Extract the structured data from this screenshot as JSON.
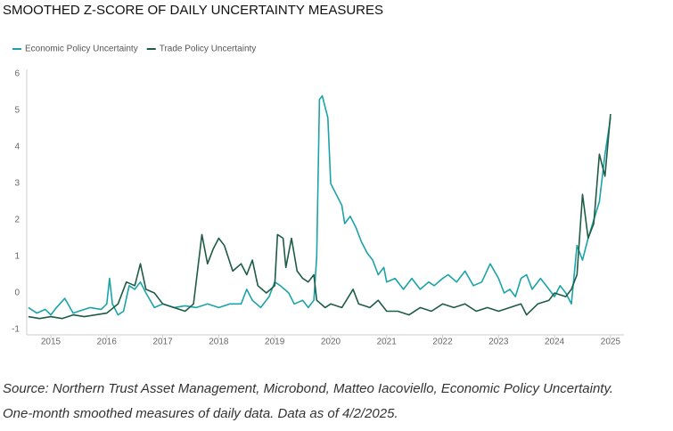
{
  "chart_data": {
    "type": "line",
    "title": "SMOOTHED Z-SCORE OF DAILY UNCERTAINTY MEASURES",
    "source": "Source: Northern Trust Asset Management, Microbond, Matteo Iacoviello, Economic Policy Uncertainty.",
    "note": "One-month smoothed measures of daily data. Data as of 4/2/2025.",
    "xlim": [
      2014.57,
      2025.24
    ],
    "xticks": [
      2015,
      2016,
      2017,
      2018,
      2019,
      2020,
      2021,
      2022,
      2023,
      2024,
      2025
    ],
    "ylim": [
      -1,
      6
    ],
    "yticks": [
      -1,
      0,
      1,
      2,
      3,
      4,
      5,
      6
    ],
    "grid": false,
    "legend": "top-left",
    "series": [
      {
        "name": "Economic Policy Uncertainty",
        "color": "#1aa3a8",
        "x": [
          2014.6,
          2014.75,
          2014.9,
          2015.0,
          2015.1,
          2015.25,
          2015.4,
          2015.5,
          2015.7,
          2015.9,
          2016.0,
          2016.05,
          2016.1,
          2016.2,
          2016.3,
          2016.4,
          2016.5,
          2016.6,
          2016.7,
          2016.85,
          2017.0,
          2017.2,
          2017.4,
          2017.6,
          2017.8,
          2018.0,
          2018.2,
          2018.4,
          2018.5,
          2018.6,
          2018.75,
          2018.9,
          2019.0,
          2019.1,
          2019.25,
          2019.35,
          2019.5,
          2019.6,
          2019.7,
          2019.75,
          2019.8,
          2019.85,
          2019.95,
          2020.0,
          2020.1,
          2020.2,
          2020.25,
          2020.35,
          2020.45,
          2020.55,
          2020.65,
          2020.75,
          2020.85,
          2020.95,
          2021.0,
          2021.15,
          2021.3,
          2021.45,
          2021.6,
          2021.75,
          2021.85,
          2022.0,
          2022.1,
          2022.25,
          2022.4,
          2022.55,
          2022.7,
          2022.85,
          2023.0,
          2023.1,
          2023.2,
          2023.3,
          2023.4,
          2023.5,
          2023.6,
          2023.75,
          2023.9,
          2024.0,
          2024.1,
          2024.2,
          2024.3,
          2024.4,
          2024.5,
          2024.6,
          2024.7,
          2024.8,
          2024.9,
          2025.0
        ],
        "values": [
          -0.4,
          -0.55,
          -0.45,
          -0.6,
          -0.4,
          -0.15,
          -0.55,
          -0.5,
          -0.4,
          -0.45,
          -0.3,
          0.4,
          -0.3,
          -0.6,
          -0.5,
          0.2,
          0.1,
          0.3,
          0.0,
          -0.4,
          -0.3,
          -0.4,
          -0.35,
          -0.4,
          -0.3,
          -0.4,
          -0.3,
          -0.3,
          0.1,
          -0.2,
          -0.4,
          -0.1,
          0.3,
          0.2,
          0.0,
          -0.3,
          -0.2,
          -0.4,
          -0.2,
          1.0,
          5.3,
          5.4,
          4.8,
          3.0,
          2.7,
          2.4,
          1.9,
          2.1,
          1.8,
          1.4,
          1.1,
          0.9,
          0.5,
          0.7,
          0.3,
          0.4,
          0.1,
          0.4,
          0.1,
          0.3,
          0.2,
          0.4,
          0.5,
          0.3,
          0.6,
          0.2,
          0.3,
          0.8,
          0.4,
          0.0,
          0.1,
          -0.1,
          0.4,
          0.5,
          0.1,
          0.4,
          0.1,
          -0.1,
          0.2,
          0.0,
          -0.3,
          1.3,
          0.9,
          1.5,
          2.0,
          2.5,
          3.8,
          4.8
        ]
      },
      {
        "name": "Trade Policy Uncertainty",
        "color": "#1e5c45",
        "x": [
          2014.6,
          2014.8,
          2015.0,
          2015.2,
          2015.4,
          2015.6,
          2015.8,
          2016.0,
          2016.2,
          2016.35,
          2016.5,
          2016.6,
          2016.7,
          2016.85,
          2017.0,
          2017.2,
          2017.4,
          2017.55,
          2017.7,
          2017.8,
          2017.9,
          2018.0,
          2018.1,
          2018.25,
          2018.4,
          2018.5,
          2018.6,
          2018.7,
          2018.85,
          2019.0,
          2019.05,
          2019.15,
          2019.2,
          2019.3,
          2019.4,
          2019.5,
          2019.6,
          2019.7,
          2019.75,
          2019.9,
          2020.0,
          2020.2,
          2020.4,
          2020.5,
          2020.7,
          2020.85,
          2021.0,
          2021.2,
          2021.4,
          2021.6,
          2021.8,
          2022.0,
          2022.2,
          2022.4,
          2022.6,
          2022.8,
          2023.0,
          2023.2,
          2023.4,
          2023.5,
          2023.7,
          2023.9,
          2024.0,
          2024.2,
          2024.3,
          2024.4,
          2024.5,
          2024.6,
          2024.7,
          2024.8,
          2024.9,
          2025.0
        ],
        "values": [
          -0.65,
          -0.7,
          -0.65,
          -0.7,
          -0.6,
          -0.65,
          -0.6,
          -0.55,
          -0.3,
          0.3,
          0.2,
          0.8,
          0.1,
          0.0,
          -0.3,
          -0.4,
          -0.5,
          -0.3,
          1.6,
          0.8,
          1.2,
          1.5,
          1.3,
          0.6,
          0.8,
          0.5,
          0.9,
          0.2,
          0.0,
          0.2,
          1.6,
          1.5,
          0.7,
          1.5,
          0.6,
          0.4,
          0.3,
          0.5,
          -0.2,
          -0.4,
          -0.3,
          -0.4,
          0.1,
          -0.3,
          -0.4,
          -0.2,
          -0.5,
          -0.5,
          -0.6,
          -0.4,
          -0.5,
          -0.3,
          -0.4,
          -0.3,
          -0.5,
          -0.4,
          -0.5,
          -0.4,
          -0.3,
          -0.6,
          -0.3,
          -0.2,
          0.0,
          -0.1,
          0.1,
          0.5,
          2.7,
          1.5,
          1.9,
          3.8,
          3.2,
          4.9
        ]
      }
    ]
  }
}
